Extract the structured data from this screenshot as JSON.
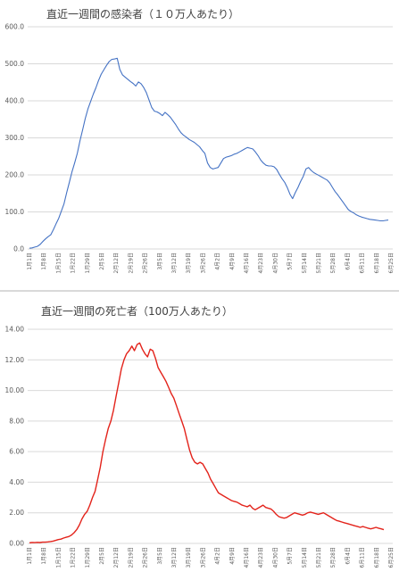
{
  "chart_data": [
    {
      "type": "line",
      "title": "直近一週間の感染者（１０万人あたり）",
      "xlabel": "",
      "ylabel": "",
      "ylim": [
        0,
        600
      ],
      "yticks": [
        "0.0",
        "100.0",
        "200.0",
        "300.0",
        "400.0",
        "500.0",
        "600.0"
      ],
      "grid": true,
      "legend": "none",
      "color": "#4472c4",
      "x_ticks": [
        "1月1日",
        "1月8日",
        "1月15日",
        "1月22日",
        "1月29日",
        "2月5日",
        "2月12日",
        "2月19日",
        "2月26日",
        "3月5日",
        "3月12日",
        "3月19日",
        "3月26日",
        "4月2日",
        "4月9日",
        "4月16日",
        "4月23日",
        "4月30日",
        "5月7日",
        "5月14日",
        "5月21日",
        "5月28日",
        "6月4日",
        "6月11日",
        "6月18日",
        "6月25日"
      ],
      "series": [
        {
          "values": [
            2,
            3,
            5,
            7,
            12,
            20,
            27,
            33,
            38,
            52,
            68,
            83,
            102,
            122,
            152,
            180,
            208,
            232,
            258,
            292,
            322,
            352,
            378,
            398,
            418,
            435,
            455,
            472,
            484,
            496,
            506,
            512,
            513,
            515,
            485,
            470,
            464,
            458,
            452,
            447,
            440,
            451,
            446,
            436,
            422,
            402,
            382,
            372,
            370,
            366,
            360,
            369,
            363,
            356,
            346,
            336,
            324,
            314,
            307,
            302,
            296,
            292,
            288,
            282,
            276,
            266,
            258,
            232,
            220,
            216,
            218,
            220,
            232,
            244,
            248,
            250,
            252,
            256,
            258,
            262,
            266,
            270,
            274,
            272,
            270,
            262,
            252,
            240,
            232,
            226,
            224,
            224,
            222,
            215,
            202,
            190,
            180,
            166,
            148,
            136,
            152,
            166,
            182,
            196,
            216,
            220,
            212,
            206,
            202,
            198,
            194,
            190,
            186,
            178,
            166,
            155,
            146,
            136,
            126,
            116,
            106,
            101,
            97,
            92,
            89,
            86,
            84,
            82,
            80,
            79,
            78,
            77,
            76,
            76,
            77,
            78
          ]
        }
      ]
    },
    {
      "type": "line",
      "title": "直近一週間の死亡者（100万人あたり）",
      "xlabel": "",
      "ylabel": "",
      "ylim": [
        0,
        14
      ],
      "yticks": [
        "0.00",
        "2.00",
        "4.00",
        "6.00",
        "8.00",
        "10.00",
        "12.00",
        "14.00"
      ],
      "grid": true,
      "legend": "none",
      "color": "#e3231b",
      "x_ticks": [
        "1月1日",
        "1月8日",
        "1月15日",
        "1月22日",
        "1月29日",
        "2月5日",
        "2月12日",
        "2月19日",
        "2月26日",
        "3月5日",
        "3月12日",
        "3月19日",
        "3月26日",
        "4月2日",
        "4月9日",
        "4月16日",
        "4月23日",
        "4月30日",
        "5月7日",
        "5月14日",
        "5月21日",
        "5月28日",
        "6月4日",
        "6月11日",
        "6月18日",
        "6月25日"
      ],
      "series": [
        {
          "values": [
            0.04,
            0.06,
            0.05,
            0.07,
            0.06,
            0.08,
            0.08,
            0.1,
            0.12,
            0.15,
            0.2,
            0.25,
            0.28,
            0.35,
            0.4,
            0.45,
            0.55,
            0.7,
            0.9,
            1.2,
            1.6,
            1.9,
            2.1,
            2.5,
            3.0,
            3.4,
            4.2,
            5.0,
            6.0,
            6.8,
            7.5,
            8.0,
            8.7,
            9.6,
            10.5,
            11.4,
            12.0,
            12.4,
            12.6,
            12.9,
            12.6,
            13.0,
            13.1,
            12.7,
            12.4,
            12.2,
            12.7,
            12.6,
            12.1,
            11.5,
            11.2,
            10.9,
            10.6,
            10.2,
            9.8,
            9.5,
            9.0,
            8.5,
            8.0,
            7.5,
            6.8,
            6.1,
            5.6,
            5.3,
            5.2,
            5.3,
            5.2,
            4.9,
            4.6,
            4.2,
            3.9,
            3.6,
            3.3,
            3.2,
            3.1,
            3.0,
            2.9,
            2.8,
            2.75,
            2.7,
            2.6,
            2.5,
            2.45,
            2.4,
            2.5,
            2.3,
            2.2,
            2.3,
            2.4,
            2.5,
            2.35,
            2.3,
            2.25,
            2.1,
            1.9,
            1.75,
            1.7,
            1.65,
            1.7,
            1.8,
            1.9,
            2.0,
            1.95,
            1.9,
            1.85,
            1.9,
            2.0,
            2.05,
            2.0,
            1.95,
            1.9,
            1.95,
            2.0,
            1.9,
            1.8,
            1.7,
            1.6,
            1.5,
            1.45,
            1.4,
            1.35,
            1.3,
            1.25,
            1.2,
            1.15,
            1.1,
            1.05,
            1.1,
            1.05,
            1.0,
            0.95,
            1.0,
            1.05,
            1.0,
            0.95,
            0.9
          ]
        }
      ]
    }
  ]
}
